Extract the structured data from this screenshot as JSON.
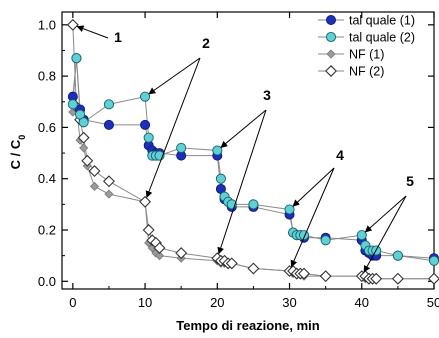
{
  "chart_data": {
    "type": "line",
    "xlabel": "Tempo di reazione, min",
    "ylabel": "C / C",
    "ylabel_sub": "0",
    "xlim": [
      -1.5,
      50
    ],
    "ylim": [
      -0.03,
      1.05
    ],
    "xticks": [
      0,
      10,
      20,
      30,
      40,
      50
    ],
    "yticks": [
      0.0,
      0.2,
      0.4,
      0.6,
      0.8,
      1.0
    ],
    "xtick_labels": [
      "0",
      "10",
      "20",
      "30",
      "40",
      "50"
    ],
    "ytick_labels": [
      "0.0",
      "0.2",
      "0.4",
      "0.6",
      "0.8",
      "1.0"
    ],
    "grid": false,
    "legend_position": "top-right",
    "series": [
      {
        "name": "tal quale (1)",
        "marker": "circle-filled",
        "color": "#1c2fb8",
        "line_color": "#8a8a8a",
        "x": [
          0,
          0.5,
          1,
          1.5,
          5,
          10,
          10.5,
          11,
          11.5,
          12,
          15,
          20,
          20.5,
          21,
          21.5,
          22,
          25,
          30,
          30.5,
          31,
          31.5,
          32,
          35,
          40,
          40.5,
          41,
          41.5,
          42,
          45,
          50
        ],
        "y": [
          0.72,
          0.87,
          0.67,
          0.63,
          0.61,
          0.61,
          0.53,
          0.51,
          0.5,
          0.5,
          0.49,
          0.49,
          0.36,
          0.32,
          0.31,
          0.29,
          0.29,
          0.26,
          0.19,
          0.18,
          0.18,
          0.17,
          0.17,
          0.16,
          0.12,
          0.11,
          0.1,
          0.1,
          0.1,
          0.09
        ]
      },
      {
        "name": "tal quale (2)",
        "marker": "circle-open-cyan",
        "color": "#5fd0d6",
        "line_color": "#8a8a8a",
        "x": [
          0,
          0.5,
          1,
          1.5,
          5,
          10,
          10.5,
          11,
          11.5,
          12,
          15,
          20,
          20.5,
          21,
          21.5,
          22,
          25,
          30,
          30.5,
          31,
          31.5,
          32,
          35,
          40,
          40.5,
          41,
          41.5,
          42,
          45,
          50
        ],
        "y": [
          0.69,
          0.87,
          0.65,
          0.62,
          0.69,
          0.72,
          0.56,
          0.49,
          0.49,
          0.49,
          0.52,
          0.51,
          0.4,
          0.33,
          0.31,
          0.3,
          0.3,
          0.28,
          0.19,
          0.18,
          0.18,
          0.18,
          0.16,
          0.18,
          0.14,
          0.12,
          0.12,
          0.12,
          0.1,
          0.08
        ]
      },
      {
        "name": "NF (1)",
        "marker": "diamond-filled",
        "color": "#9a9a9a",
        "line_color": "#8a8a8a",
        "x": [
          0,
          0.5,
          1,
          1.5,
          2,
          3,
          5,
          10,
          10.5,
          11,
          11.5,
          12,
          15,
          20,
          20.5,
          21,
          21.5,
          22,
          25,
          30,
          30.5,
          31,
          31.5,
          32,
          35,
          40,
          40.5,
          41,
          41.5,
          42,
          45,
          50
        ],
        "y": [
          0.66,
          0.68,
          0.55,
          0.52,
          0.45,
          0.37,
          0.34,
          0.31,
          0.15,
          0.13,
          0.11,
          0.1,
          0.09,
          0.08,
          0.07,
          0.07,
          0.07,
          0.07,
          0.05,
          0.04,
          0.03,
          0.03,
          0.03,
          0.02,
          0.02,
          0.02,
          0.01,
          0.01,
          0.01,
          0.01,
          0.01,
          0.01
        ]
      },
      {
        "name": "NF (2)",
        "marker": "diamond-open",
        "color": "#333333",
        "line_color": "#8a8a8a",
        "x": [
          0,
          0.5,
          1,
          1.5,
          2,
          3,
          5,
          10,
          10.5,
          11,
          11.5,
          12,
          15,
          20,
          20.5,
          21,
          21.5,
          22,
          25,
          30,
          30.5,
          31,
          31.5,
          32,
          35,
          40,
          40.5,
          41,
          41.5,
          42,
          45,
          50
        ],
        "y": [
          1.0,
          0.68,
          0.63,
          0.56,
          0.47,
          0.43,
          0.39,
          0.31,
          0.2,
          0.16,
          0.15,
          0.13,
          0.11,
          0.09,
          0.08,
          0.08,
          0.07,
          0.07,
          0.05,
          0.04,
          0.04,
          0.03,
          0.03,
          0.03,
          0.02,
          0.02,
          0.02,
          0.01,
          0.01,
          0.01,
          0.01,
          0.01
        ]
      }
    ],
    "annotations": [
      {
        "label": "1",
        "arrows_to": [
          [
            0,
            1.0
          ]
        ]
      },
      {
        "label": "2",
        "arrows_to": [
          [
            10,
            0.72
          ],
          [
            10,
            0.31
          ]
        ]
      },
      {
        "label": "3",
        "arrows_to": [
          [
            20,
            0.51
          ],
          [
            20,
            0.09
          ]
        ]
      },
      {
        "label": "4",
        "arrows_to": [
          [
            30,
            0.28
          ],
          [
            30,
            0.04
          ]
        ]
      },
      {
        "label": "5",
        "arrows_to": [
          [
            40,
            0.18
          ],
          [
            40,
            0.02
          ]
        ]
      }
    ]
  }
}
